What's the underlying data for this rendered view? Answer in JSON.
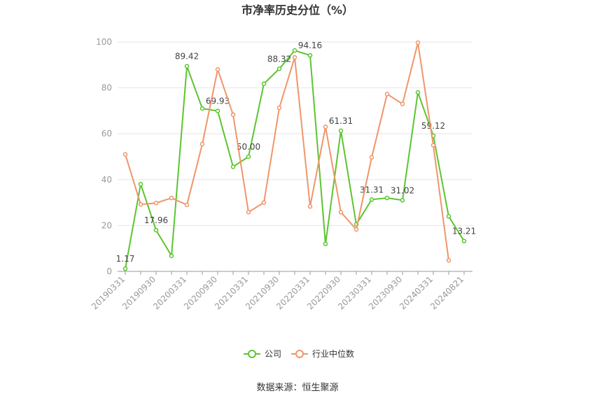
{
  "chart_data": {
    "type": "line",
    "title": "市净率历史分位（%）",
    "categories": [
      "20190331",
      null,
      "20190930",
      null,
      "20200331",
      null,
      "20200930",
      null,
      "20210331",
      null,
      "20210930",
      null,
      "20220331",
      null,
      "20220930",
      null,
      "20230331",
      null,
      "20230930",
      null,
      "20240331",
      null,
      "20240821"
    ],
    "series": [
      {
        "name": "公司",
        "color": "#5cc530",
        "values": [
          1.17,
          38,
          17.96,
          6.8,
          89.42,
          71,
          69.93,
          45.6,
          50.0,
          81.8,
          88.32,
          96.3,
          94.16,
          12,
          61.31,
          20.5,
          31.31,
          32,
          31.02,
          78,
          59.12,
          24,
          13.21
        ],
        "value_labels": [
          "1.17",
          null,
          "17.96",
          null,
          "89.42",
          null,
          "69.93",
          null,
          "50.00",
          null,
          "88.32",
          null,
          "94.16",
          null,
          "61.31",
          null,
          "31.31",
          null,
          "31.02",
          null,
          "59.12",
          null,
          "13.21"
        ]
      },
      {
        "name": "行业中位数",
        "color": "#f0956a",
        "values": [
          51,
          29.2,
          29.8,
          32,
          29,
          55.5,
          88,
          68.3,
          25.8,
          30,
          71.3,
          93.3,
          28.3,
          63,
          25.8,
          18.3,
          49.7,
          77.3,
          73,
          99.7,
          55,
          4.8,
          null
        ]
      }
    ],
    "ylim": [
      0,
      100
    ],
    "yticks": [
      0,
      20,
      40,
      60,
      80,
      100
    ],
    "grid": true,
    "legend": "bottom",
    "source": "数据来源：恒生聚源"
  }
}
